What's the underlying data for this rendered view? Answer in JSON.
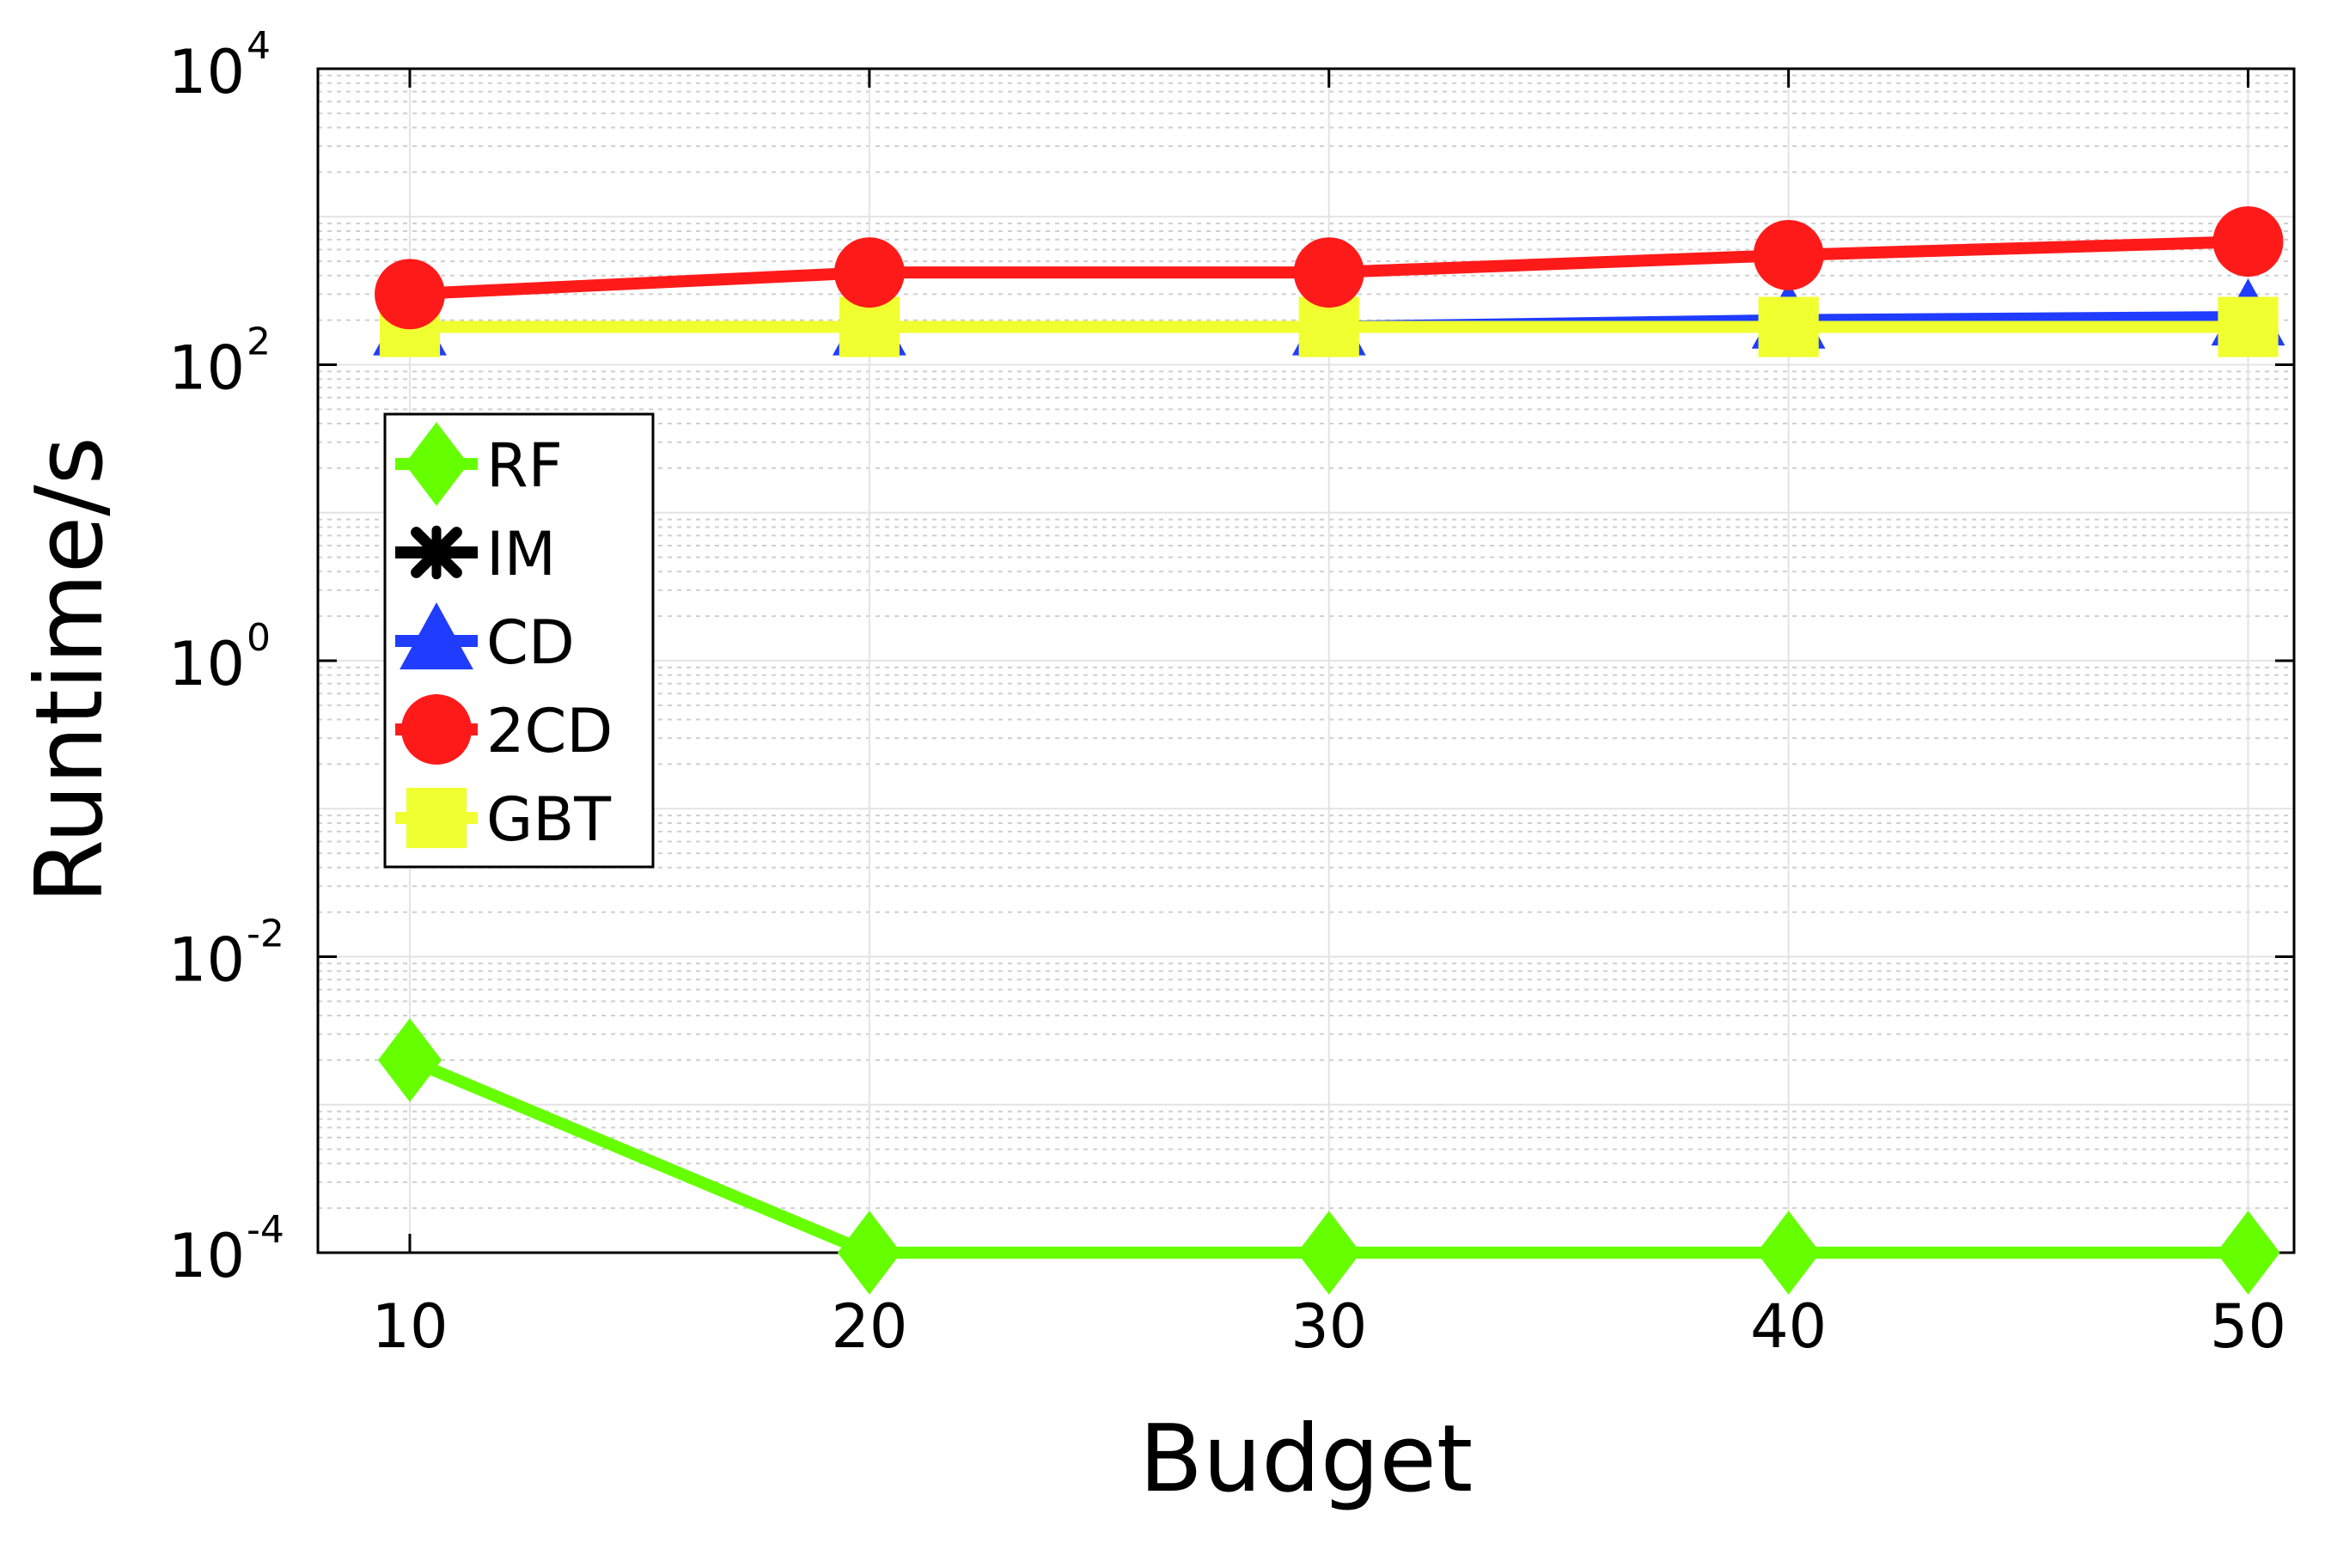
{
  "chart_data": {
    "type": "line",
    "xlabel": "Budget",
    "ylabel": "Runtime/s",
    "x": [
      10,
      20,
      30,
      40,
      50
    ],
    "xticks": [
      "10",
      "20",
      "30",
      "40",
      "50"
    ],
    "xlim": [
      8,
      51
    ],
    "yscale": "log",
    "ylim": [
      0.0001,
      10000
    ],
    "yticks": [
      {
        "base": "10",
        "exp": "-4",
        "value": 0.0001
      },
      {
        "base": "10",
        "exp": "-2",
        "value": 0.01
      },
      {
        "base": "10",
        "exp": "0",
        "value": 1
      },
      {
        "base": "10",
        "exp": "2",
        "value": 100
      },
      {
        "base": "10",
        "exp": "4",
        "value": 10000
      }
    ],
    "grid": true,
    "legend_position": "upper-left",
    "series": [
      {
        "name": "RF",
        "color": "#66ff00",
        "marker": "diamond",
        "values": [
          0.002,
          0.0001,
          0.0001,
          0.0001,
          0.0001
        ]
      },
      {
        "name": "IM",
        "color": "#000000",
        "marker": "x",
        "values": [
          180,
          180,
          180,
          180,
          180
        ]
      },
      {
        "name": "CD",
        "color": "#1f3cff",
        "marker": "triangle",
        "values": [
          180,
          180,
          180,
          200,
          210
        ]
      },
      {
        "name": "2CD",
        "color": "#ff1a1a",
        "marker": "circle",
        "values": [
          300,
          420,
          420,
          550,
          680
        ]
      },
      {
        "name": "GBT",
        "color": "#f0ff30",
        "marker": "square",
        "values": [
          180,
          180,
          180,
          180,
          180
        ]
      }
    ]
  }
}
